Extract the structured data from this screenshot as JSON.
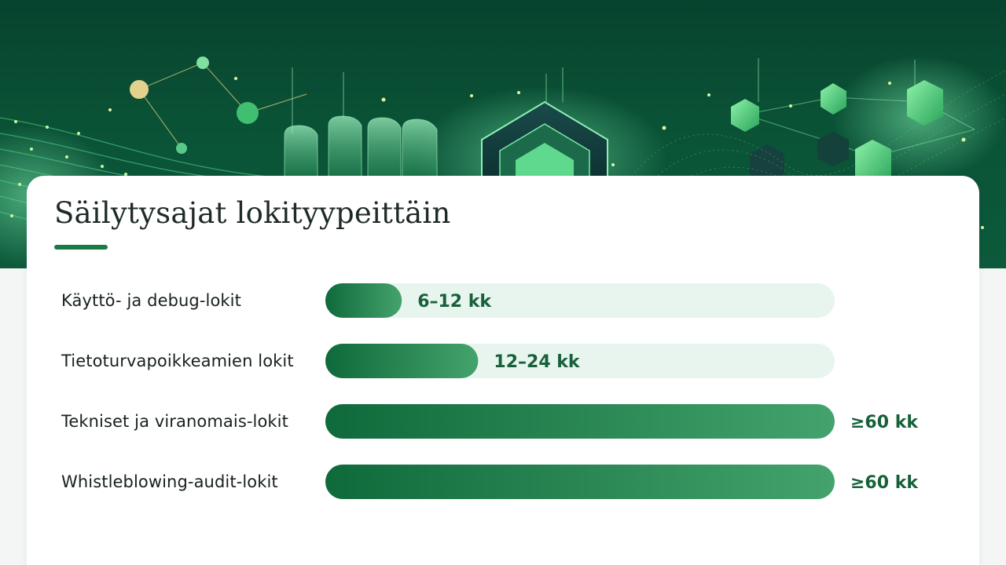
{
  "title": "Säilytysajat lokityypeittäin",
  "colors": {
    "bar_dark": "#0f6a3b",
    "bar_light": "#44a36c",
    "track": "#e8f4ee",
    "value_text": "#17613a",
    "accent": "#1b7a43"
  },
  "chart_data": {
    "type": "bar",
    "orientation": "horizontal",
    "unit": "kk",
    "xlim": [
      0,
      60
    ],
    "categories": [
      "Käyttö- ja debug-lokit",
      "Tietoturvapoikkeamien lokit",
      "Tekniset ja viranomais-lokit",
      "Whistleblowing-audit-lokit"
    ],
    "values": [
      9,
      18,
      60,
      60
    ],
    "value_labels": [
      "6–12 kk",
      "12–24 kk",
      "≥60 kk",
      "≥60 kk"
    ]
  }
}
